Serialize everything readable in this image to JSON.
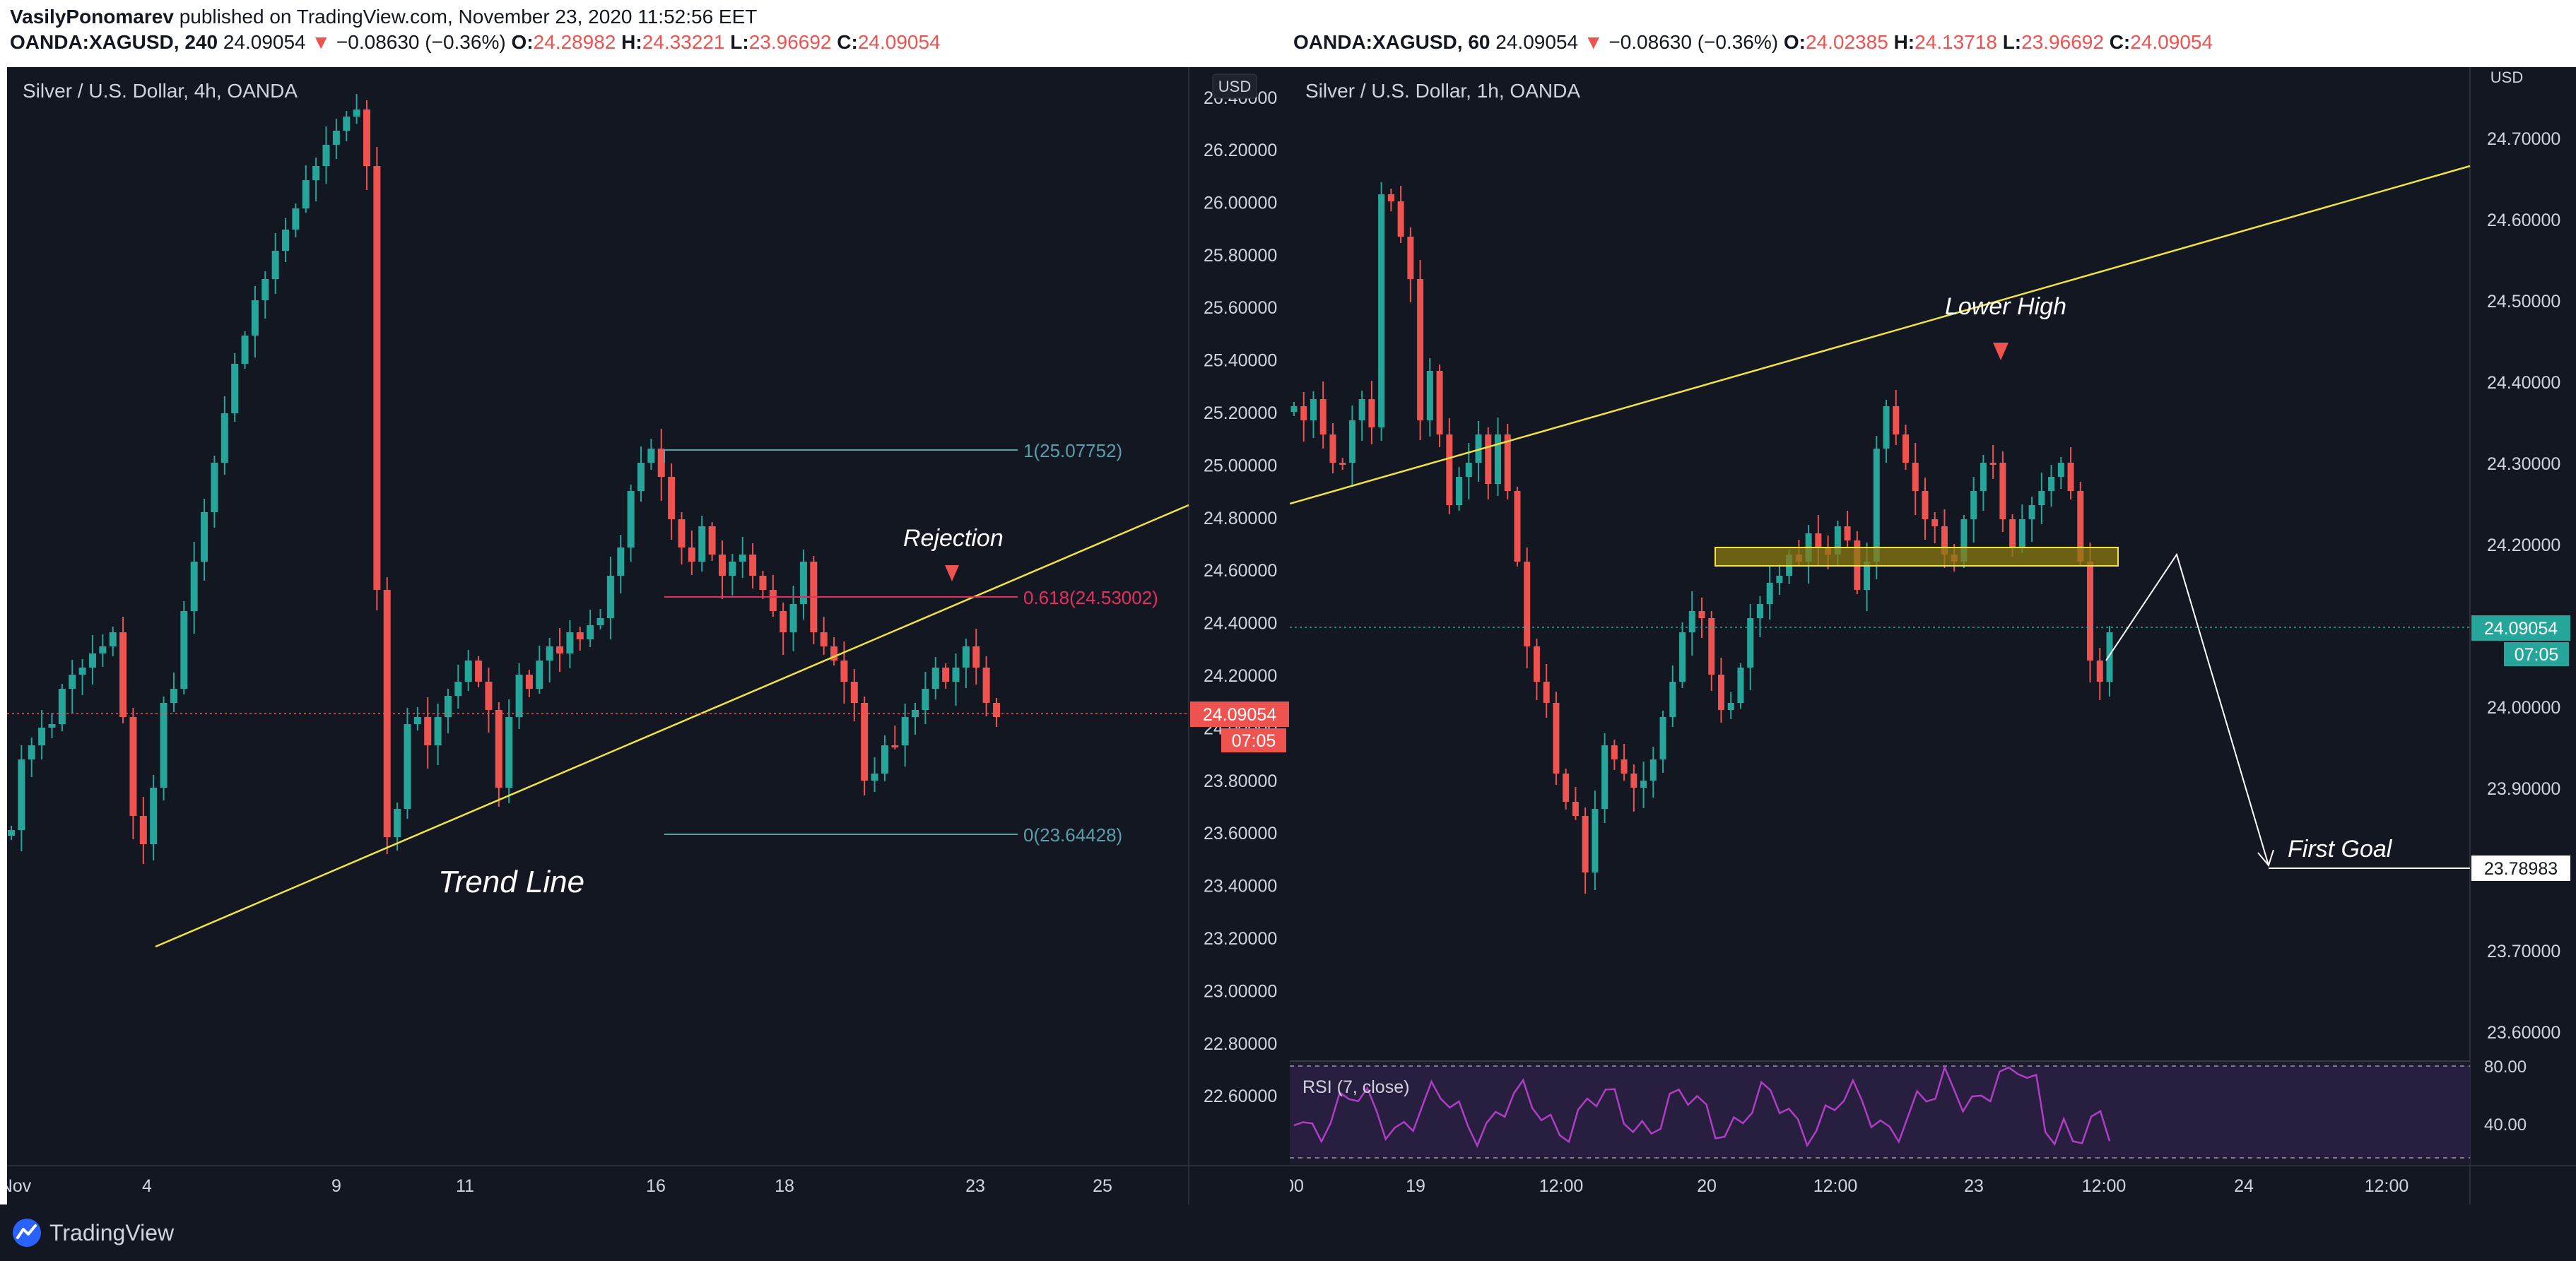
{
  "header": {
    "author": "VasilyPonomarev",
    "published_text": "published on TradingView.com, November 23, 2020 11:52:56 EET",
    "left": {
      "symbol": "OANDA:XAGUSD, 240",
      "price": "24.09054",
      "change": "−0.08630 (−0.36%)",
      "o": "24.28982",
      "h": "24.33221",
      "l": "23.96692",
      "c": "24.09054"
    },
    "right": {
      "symbol": "OANDA:XAGUSD, 60",
      "price": "24.09054",
      "change": "−0.08630 (−0.36%)",
      "o": "24.02385",
      "h": "24.13718",
      "l": "23.96692",
      "c": "24.09054"
    },
    "labels": {
      "o": "O:",
      "h": "H:",
      "l": "L:",
      "c": "C:"
    }
  },
  "colors": {
    "background": "#131722",
    "bull": "#26a69a",
    "bear": "#ef5350",
    "trend": "#f0e442",
    "fib": "#5b9ea8",
    "fib_level": "#e5305e",
    "rsi": "#9c27b0",
    "text": "#d1d4dc"
  },
  "left_chart": {
    "title": "Silver / U.S. Dollar, 4h, OANDA",
    "currency": "USD",
    "price_ticks": [
      "26.20000",
      "26.00000",
      "25.80000",
      "25.60000",
      "25.40000",
      "25.20000",
      "25.00000",
      "24.80000",
      "24.60000",
      "24.40000",
      "24.20000",
      "24.00000",
      "23.80000",
      "23.60000",
      "23.40000",
      "23.20000",
      "23.00000",
      "22.80000",
      "22.60000"
    ],
    "tick_top_partial": "26.40000",
    "time_ticks": [
      "Nov",
      "4",
      "9",
      "11",
      "16",
      "18",
      "23",
      "25"
    ],
    "last_price": "24.09054",
    "countdown": "07:05",
    "fib_1": "1(25.07752)",
    "fib_0618": "0.618(24.53002)",
    "fib_0": "0(23.64428)",
    "annotations": {
      "rejection": "Rejection",
      "trend_line": "Trend Line"
    }
  },
  "right_chart": {
    "title": "Silver / U.S. Dollar, 1h, OANDA",
    "currency": "USD",
    "price_ticks": [
      "24.70000",
      "24.60000",
      "24.50000",
      "24.40000",
      "24.30000",
      "24.20000",
      "24.10000",
      "24.00000",
      "23.90000",
      "23.80000",
      "23.70000",
      "23.60000"
    ],
    "time_ticks": [
      "00",
      "19",
      "12:00",
      "20",
      "12:00",
      "23",
      "12:00",
      "24",
      "12:00"
    ],
    "last_price": "24.09054",
    "countdown": "07:05",
    "goal_price": "23.78983",
    "annotations": {
      "lower_high": "Lower High",
      "first_goal": "First Goal"
    },
    "rsi": {
      "label": "RSI (7, close)",
      "ticks": [
        "80.00",
        "40.00"
      ]
    }
  },
  "footer": {
    "brand": "TradingView"
  }
}
